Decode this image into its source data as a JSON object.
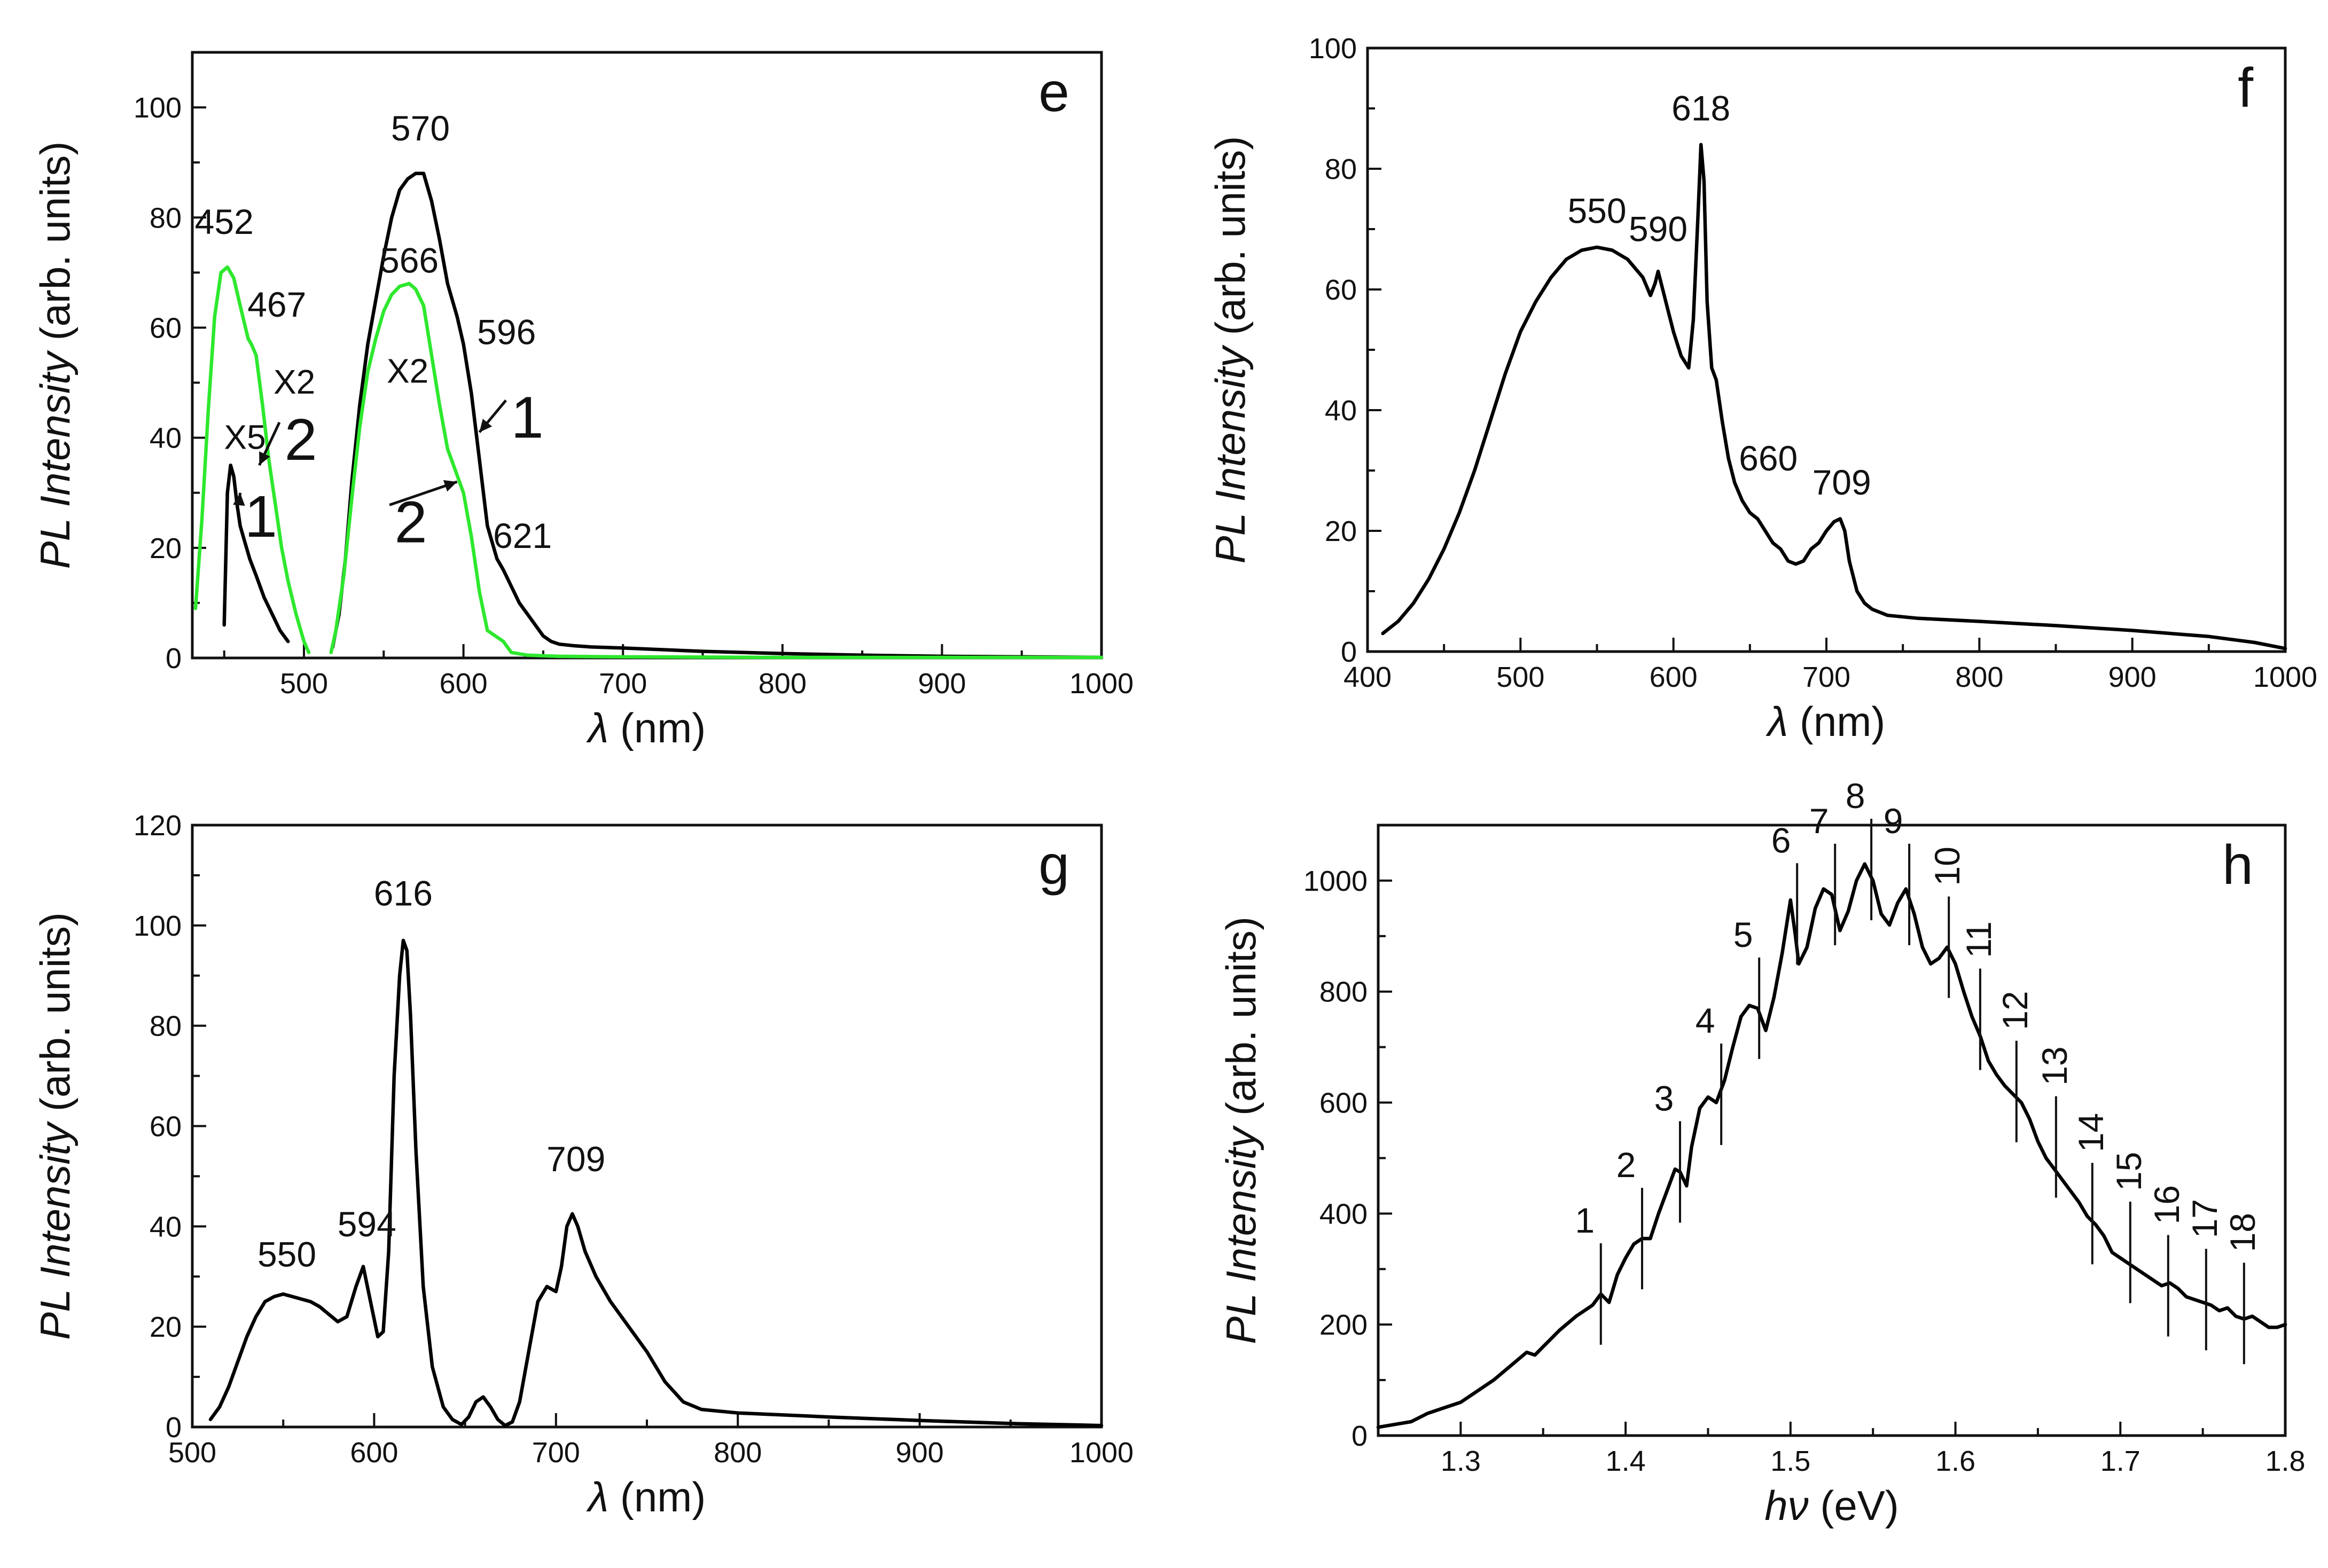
{
  "chart_data": [
    {
      "id": "e",
      "type": "line",
      "panel_label": "e",
      "xlabel_symbol": "λ",
      "xlabel_unit": " (nm)",
      "ylabel_italic": "PL Intensity",
      "ylabel_unit": " (arb. units)",
      "xlim": [
        430,
        1000
      ],
      "ylim": [
        0,
        110
      ],
      "xticks": [
        500,
        600,
        700,
        800,
        900,
        1000
      ],
      "yticks": [
        0,
        20,
        40,
        60,
        80,
        100
      ],
      "series": [
        {
          "name": "1 (X5)",
          "color": "#000000",
          "x": [
            450,
            452,
            454,
            456,
            458,
            460,
            463,
            466,
            470,
            475,
            480,
            485,
            490
          ],
          "y": [
            6,
            30,
            35,
            33,
            28,
            24,
            21,
            18,
            15,
            11,
            8,
            5,
            3
          ]
        },
        {
          "name": "2 (X2)",
          "color": "#2ee82e",
          "x": [
            432,
            436,
            440,
            444,
            448,
            452,
            456,
            460,
            465,
            467,
            470,
            474,
            478,
            482,
            486,
            490,
            495,
            500,
            503
          ],
          "y": [
            9,
            25,
            45,
            62,
            70,
            71,
            69,
            64,
            58,
            57,
            55,
            46,
            36,
            28,
            20,
            14,
            8,
            3,
            1
          ]
        },
        {
          "name": "1",
          "color": "#000000",
          "x": [
            518,
            522,
            526,
            530,
            535,
            540,
            545,
            550,
            555,
            560,
            565,
            570,
            575,
            580,
            585,
            590,
            596,
            600,
            605,
            610,
            615,
            621,
            625,
            630,
            635,
            640,
            645,
            650,
            655,
            660,
            670,
            680,
            700,
            750,
            800,
            850,
            900,
            950,
            1000
          ],
          "y": [
            2,
            8,
            18,
            32,
            46,
            57,
            65,
            73,
            80,
            85,
            87,
            88,
            88,
            83,
            76,
            68,
            62,
            57,
            48,
            36,
            24,
            18,
            16,
            13,
            10,
            8,
            6,
            4,
            3,
            2.5,
            2.2,
            2,
            1.8,
            1.2,
            0.8,
            0.5,
            0.3,
            0.2,
            0.1
          ]
        },
        {
          "name": "2",
          "color": "#2ee82e",
          "x": [
            517,
            520,
            525,
            530,
            535,
            540,
            545,
            550,
            555,
            560,
            566,
            570,
            575,
            580,
            585,
            590,
            595,
            600,
            605,
            610,
            615,
            620,
            625,
            630,
            640,
            660,
            700,
            800,
            900,
            1000
          ],
          "y": [
            1,
            5,
            15,
            29,
            42,
            52,
            58,
            63,
            66,
            67.5,
            68,
            67,
            64,
            55,
            46,
            38,
            34,
            30,
            22,
            12,
            5,
            4,
            3,
            1,
            0.5,
            0.3,
            0.2,
            0.1,
            0.1,
            0.1
          ]
        }
      ],
      "peak_labels": [
        {
          "text": "452",
          "x": 450,
          "y": 77
        },
        {
          "text": "467",
          "x": 483,
          "y": 62
        },
        {
          "text": "570",
          "x": 573,
          "y": 94
        },
        {
          "text": "566",
          "x": 566,
          "y": 70
        },
        {
          "text": "596",
          "x": 627,
          "y": 57
        },
        {
          "text": "621",
          "x": 637,
          "y": 20
        }
      ],
      "multiplier_labels": [
        {
          "text": "X2",
          "x": 494,
          "y": 48
        },
        {
          "text": "X5",
          "x": 463,
          "y": 38
        },
        {
          "text": "X2",
          "x": 565,
          "y": 50
        }
      ],
      "curve_labels": [
        {
          "text": "2",
          "x": 498,
          "y": 36
        },
        {
          "text": "1",
          "x": 473,
          "y": 22
        },
        {
          "text": "1",
          "x": 640,
          "y": 40
        },
        {
          "text": "2",
          "x": 567,
          "y": 21
        }
      ]
    },
    {
      "id": "f",
      "type": "line",
      "panel_label": "f",
      "xlabel_symbol": "λ",
      "xlabel_unit": " (nm)",
      "ylabel_italic": "PL Intensity",
      "ylabel_unit": " (arb. units)",
      "xlim": [
        400,
        1000
      ],
      "ylim": [
        0,
        100
      ],
      "xticks": [
        400,
        500,
        600,
        700,
        800,
        900,
        1000
      ],
      "yticks": [
        0,
        20,
        40,
        60,
        80,
        100
      ],
      "series": [
        {
          "name": "spectrum",
          "color": "#000000",
          "x": [
            410,
            420,
            430,
            440,
            450,
            460,
            470,
            480,
            490,
            500,
            510,
            520,
            530,
            540,
            550,
            560,
            570,
            580,
            585,
            588,
            590,
            593,
            596,
            600,
            605,
            610,
            613,
            616,
            618,
            620,
            622,
            625,
            628,
            632,
            636,
            640,
            645,
            650,
            655,
            660,
            665,
            670,
            675,
            680,
            685,
            690,
            695,
            700,
            705,
            709,
            712,
            715,
            720,
            725,
            730,
            740,
            760,
            800,
            850,
            900,
            950,
            980,
            1000
          ],
          "y": [
            3,
            5,
            8,
            12,
            17,
            23,
            30,
            38,
            46,
            53,
            58,
            62,
            65,
            66.5,
            67,
            66.5,
            65,
            62,
            59,
            61,
            63,
            60,
            57,
            53,
            49,
            47,
            55,
            72,
            84,
            78,
            58,
            47,
            45,
            38,
            32,
            28,
            25,
            23,
            22,
            20,
            18,
            17,
            15,
            14.5,
            15,
            17,
            18,
            20,
            21.5,
            22,
            20,
            15,
            10,
            8,
            7,
            6,
            5.5,
            5,
            4.3,
            3.5,
            2.5,
            1.5,
            0.5
          ]
        }
      ],
      "peak_labels": [
        {
          "text": "550",
          "x": 550,
          "y": 71
        },
        {
          "text": "590",
          "x": 590,
          "y": 68
        },
        {
          "text": "618",
          "x": 618,
          "y": 88
        },
        {
          "text": "660",
          "x": 662,
          "y": 30
        },
        {
          "text": "709",
          "x": 710,
          "y": 26
        }
      ]
    },
    {
      "id": "g",
      "type": "line",
      "panel_label": "g",
      "xlabel_symbol": "λ",
      "xlabel_unit": " (nm)",
      "ylabel_italic": "PL Intensity",
      "ylabel_unit": " (arb. units)",
      "xlim": [
        500,
        1000
      ],
      "ylim": [
        0,
        120
      ],
      "xticks": [
        500,
        600,
        700,
        800,
        900,
        1000
      ],
      "yticks": [
        0,
        20,
        40,
        60,
        80,
        100,
        120
      ],
      "series": [
        {
          "name": "spectrum",
          "color": "#000000",
          "x": [
            510,
            515,
            520,
            525,
            530,
            535,
            540,
            545,
            550,
            555,
            560,
            565,
            570,
            575,
            580,
            585,
            590,
            594,
            598,
            602,
            605,
            608,
            611,
            614,
            616,
            618,
            620,
            623,
            627,
            632,
            638,
            643,
            648,
            652,
            656,
            660,
            664,
            668,
            672,
            676,
            680,
            685,
            690,
            695,
            700,
            703,
            706,
            709,
            712,
            716,
            722,
            730,
            740,
            750,
            760,
            770,
            780,
            800,
            850,
            900,
            950,
            1000
          ],
          "y": [
            1.5,
            4,
            8,
            13,
            18,
            22,
            25,
            26,
            26.5,
            26,
            25.5,
            25,
            24,
            22.5,
            21,
            22,
            28,
            32,
            25,
            18,
            19,
            35,
            70,
            90,
            97,
            95,
            82,
            55,
            28,
            12,
            4,
            1.5,
            0.5,
            2,
            5,
            6,
            4,
            1.5,
            0.3,
            1,
            5,
            15,
            25,
            28,
            27,
            32,
            40,
            42.5,
            40,
            35,
            30,
            25,
            20,
            15,
            9,
            5,
            3.5,
            2.8,
            2,
            1.3,
            0.7,
            0.3
          ]
        }
      ],
      "peak_labels": [
        {
          "text": "550",
          "x": 552,
          "y": 32
        },
        {
          "text": "594",
          "x": 596,
          "y": 38
        },
        {
          "text": "616",
          "x": 616,
          "y": 104
        },
        {
          "text": "709",
          "x": 711,
          "y": 51
        }
      ]
    },
    {
      "id": "h",
      "type": "line",
      "panel_label": "h",
      "xlabel_symbol": "hν",
      "xlabel_unit": " (eV)",
      "ylabel_italic": "PL Intensity",
      "ylabel_unit": " (arb. units)",
      "xlim": [
        1.25,
        1.8
      ],
      "ylim": [
        0,
        1100
      ],
      "xticks": [
        1.3,
        1.4,
        1.5,
        1.6,
        1.7,
        1.8
      ],
      "xtick_labels": [
        "1.3",
        "1.4",
        "1.5",
        "1.6",
        "1.7",
        "1.8"
      ],
      "yticks": [
        0,
        200,
        400,
        600,
        800,
        1000
      ],
      "series": [
        {
          "name": "spectrum",
          "color": "#000000",
          "x": [
            1.25,
            1.26,
            1.27,
            1.28,
            1.29,
            1.3,
            1.31,
            1.32,
            1.33,
            1.34,
            1.345,
            1.35,
            1.355,
            1.36,
            1.37,
            1.38,
            1.385,
            1.39,
            1.395,
            1.4,
            1.405,
            1.41,
            1.415,
            1.42,
            1.425,
            1.43,
            1.433,
            1.437,
            1.44,
            1.445,
            1.45,
            1.455,
            1.46,
            1.465,
            1.47,
            1.475,
            1.48,
            1.485,
            1.49,
            1.495,
            1.5,
            1.503,
            1.505,
            1.51,
            1.515,
            1.52,
            1.525,
            1.53,
            1.535,
            1.54,
            1.545,
            1.55,
            1.555,
            1.56,
            1.565,
            1.57,
            1.575,
            1.58,
            1.585,
            1.59,
            1.595,
            1.6,
            1.605,
            1.61,
            1.615,
            1.62,
            1.625,
            1.63,
            1.635,
            1.64,
            1.645,
            1.65,
            1.655,
            1.66,
            1.665,
            1.67,
            1.675,
            1.68,
            1.685,
            1.69,
            1.695,
            1.7,
            1.705,
            1.71,
            1.715,
            1.72,
            1.725,
            1.73,
            1.735,
            1.74,
            1.745,
            1.75,
            1.755,
            1.76,
            1.765,
            1.77,
            1.775,
            1.78,
            1.785,
            1.79,
            1.795,
            1.8
          ],
          "y": [
            15,
            20,
            25,
            40,
            50,
            60,
            80,
            100,
            125,
            150,
            145,
            160,
            175,
            190,
            215,
            235,
            255,
            240,
            290,
            320,
            345,
            355,
            355,
            400,
            440,
            480,
            475,
            450,
            520,
            590,
            610,
            600,
            640,
            700,
            755,
            775,
            770,
            730,
            790,
            870,
            965,
            900,
            850,
            880,
            950,
            985,
            975,
            910,
            945,
            1000,
            1030,
            1000,
            940,
            920,
            960,
            985,
            940,
            880,
            850,
            860,
            880,
            850,
            800,
            755,
            720,
            675,
            650,
            630,
            615,
            600,
            570,
            530,
            500,
            480,
            460,
            440,
            420,
            395,
            380,
            360,
            330,
            320,
            310,
            300,
            290,
            280,
            270,
            275,
            265,
            250,
            245,
            240,
            235,
            225,
            230,
            215,
            210,
            215,
            205,
            195,
            195,
            200
          ]
        }
      ],
      "markers": [
        {
          "label": "1",
          "x": 1.385,
          "y": 255
        },
        {
          "label": "2",
          "x": 1.41,
          "y": 355
        },
        {
          "label": "3",
          "x": 1.433,
          "y": 475
        },
        {
          "label": "4",
          "x": 1.458,
          "y": 615
        },
        {
          "label": "5",
          "x": 1.481,
          "y": 770
        },
        {
          "label": "6",
          "x": 1.504,
          "y": 940
        },
        {
          "label": "7",
          "x": 1.527,
          "y": 975
        },
        {
          "label": "8",
          "x": 1.549,
          "y": 1020
        },
        {
          "label": "9",
          "x": 1.572,
          "y": 975
        },
        {
          "label": "10",
          "x": 1.596,
          "y": 880
        },
        {
          "label": "11",
          "x": 1.615,
          "y": 750
        },
        {
          "label": "12",
          "x": 1.637,
          "y": 620
        },
        {
          "label": "13",
          "x": 1.661,
          "y": 520
        },
        {
          "label": "14",
          "x": 1.683,
          "y": 400
        },
        {
          "label": "15",
          "x": 1.706,
          "y": 330
        },
        {
          "label": "16",
          "x": 1.729,
          "y": 270
        },
        {
          "label": "17",
          "x": 1.752,
          "y": 245
        },
        {
          "label": "18",
          "x": 1.775,
          "y": 220
        }
      ]
    }
  ]
}
